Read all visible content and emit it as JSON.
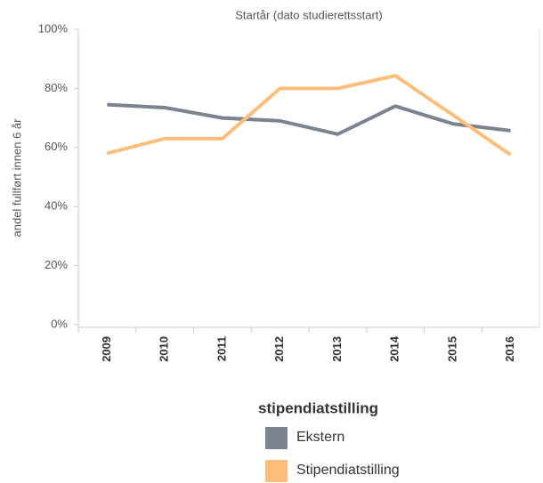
{
  "chart_data": {
    "type": "line",
    "title": "Startår (dato studierettsstart)",
    "y_label": "andel fullført innen 6 år",
    "categories": [
      "2009",
      "2010",
      "2011",
      "2012",
      "2013",
      "2014",
      "2015",
      "2016"
    ],
    "series": [
      {
        "name": "Ekstern",
        "color": "#7b8290",
        "values": [
          74.5,
          73.5,
          70,
          69,
          64.5,
          74,
          68,
          65.7
        ]
      },
      {
        "name": "Stipendiatstilling",
        "color": "#fdbd7b",
        "values": [
          58,
          63,
          63,
          80,
          80,
          84.3,
          71,
          57.5
        ]
      }
    ],
    "ylim": [
      0,
      100
    ],
    "yticks": [
      {
        "value": 0,
        "label": "0%"
      },
      {
        "value": 20,
        "label": "20%"
      },
      {
        "value": 40,
        "label": "40%"
      },
      {
        "value": 60,
        "label": "60%"
      },
      {
        "value": 80,
        "label": "80%"
      },
      {
        "value": 100,
        "label": "100%"
      }
    ],
    "grid": false,
    "legend_title": "stipendiatstilling",
    "legend_position": "bottom"
  }
}
